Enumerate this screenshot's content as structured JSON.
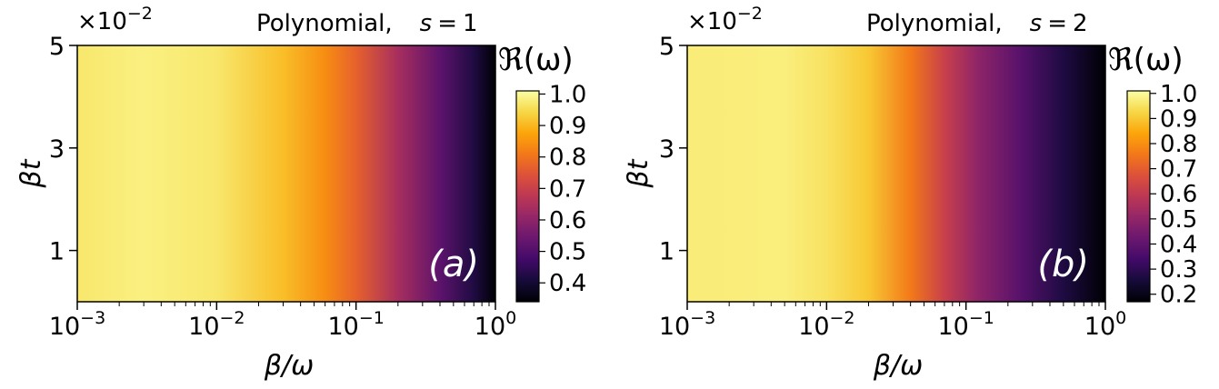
{
  "chart_data": [
    {
      "type": "heatmap",
      "panel_label": "(a)",
      "title": "Polynomial,   s = 1",
      "title_parts": {
        "name": "Polynomial,",
        "param": "s",
        "eq": "=",
        "value": "1"
      },
      "xlabel": "β/ω",
      "ylabel": "βt",
      "x_scale": "log",
      "xlim": [
        0.001,
        1
      ],
      "x_ticks": [
        {
          "base": "10",
          "exp": "−3"
        },
        {
          "base": "10",
          "exp": "−2"
        },
        {
          "base": "10",
          "exp": "−1"
        },
        {
          "base": "10",
          "exp": "0"
        }
      ],
      "ylim": [
        0.0,
        0.05
      ],
      "y_ticks": [
        "1",
        "3",
        "5"
      ],
      "y_tick_values": [
        0.01,
        0.03,
        0.05
      ],
      "y_multiplier": {
        "prefix": "×10",
        "exp": "−2"
      },
      "colorbar": {
        "label": "ℜ(ω)",
        "colormap": "inferno",
        "range": [
          0.34,
          1.01
        ],
        "ticks": [
          "0.4",
          "0.5",
          "0.6",
          "0.7",
          "0.8",
          "0.9",
          "1.0"
        ]
      },
      "value_profile_along_x": [
        {
          "x": 0.001,
          "value": 0.97
        },
        {
          "x": 0.003,
          "value": 0.985
        },
        {
          "x": 0.01,
          "value": 0.97
        },
        {
          "x": 0.03,
          "value": 0.91
        },
        {
          "x": 0.06,
          "value": 0.84
        },
        {
          "x": 0.1,
          "value": 0.77
        },
        {
          "x": 0.2,
          "value": 0.64
        },
        {
          "x": 0.4,
          "value": 0.52
        },
        {
          "x": 0.7,
          "value": 0.42
        },
        {
          "x": 1.0,
          "value": 0.34
        }
      ]
    },
    {
      "type": "heatmap",
      "panel_label": "(b)",
      "title": "Polynomial,   s = 2",
      "title_parts": {
        "name": "Polynomial,",
        "param": "s",
        "eq": "=",
        "value": "2"
      },
      "xlabel": "β/ω",
      "ylabel": "βt",
      "x_scale": "log",
      "xlim": [
        0.001,
        1
      ],
      "x_ticks": [
        {
          "base": "10",
          "exp": "−3"
        },
        {
          "base": "10",
          "exp": "−2"
        },
        {
          "base": "10",
          "exp": "−1"
        },
        {
          "base": "10",
          "exp": "0"
        }
      ],
      "ylim": [
        0.0,
        0.05
      ],
      "y_ticks": [
        "1",
        "3",
        "5"
      ],
      "y_tick_values": [
        0.01,
        0.03,
        0.05
      ],
      "y_multiplier": {
        "prefix": "×10",
        "exp": "−2"
      },
      "colorbar": {
        "label": "ℜ(ω)",
        "colormap": "inferno",
        "range": [
          0.17,
          1.01
        ],
        "ticks": [
          "0.2",
          "0.3",
          "0.4",
          "0.5",
          "0.6",
          "0.7",
          "0.8",
          "0.9",
          "1.0"
        ]
      },
      "value_profile_along_x": [
        {
          "x": 0.001,
          "value": 0.97
        },
        {
          "x": 0.005,
          "value": 0.975
        },
        {
          "x": 0.01,
          "value": 0.95
        },
        {
          "x": 0.02,
          "value": 0.9
        },
        {
          "x": 0.04,
          "value": 0.76
        },
        {
          "x": 0.07,
          "value": 0.62
        },
        {
          "x": 0.12,
          "value": 0.5
        },
        {
          "x": 0.25,
          "value": 0.38
        },
        {
          "x": 0.5,
          "value": 0.27
        },
        {
          "x": 1.0,
          "value": 0.17
        }
      ]
    }
  ]
}
